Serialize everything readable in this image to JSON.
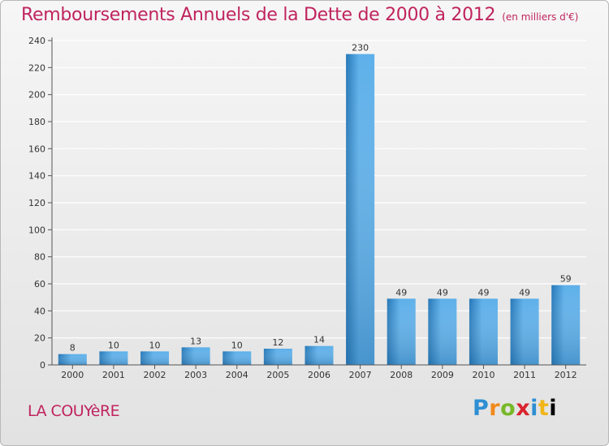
{
  "header": {
    "title": "Remboursements Annuels de la Dette de 2000 à 2012",
    "unit": "(en milliers d'€)"
  },
  "footer": {
    "commune": "LA COUYèRE",
    "logo_letters": [
      "P",
      "r",
      "o",
      "x",
      "i",
      "t",
      "i"
    ]
  },
  "colors": {
    "title": "#c0245e",
    "bar_light": "#5eb0ea",
    "bar_dark": "#2578b8",
    "grid": "#ffffff",
    "background_top": "#f6f6f6",
    "background_bottom": "#e2e2e2"
  },
  "chart_data": {
    "type": "bar",
    "categories": [
      "2000",
      "2001",
      "2002",
      "2003",
      "2004",
      "2005",
      "2006",
      "2007",
      "2008",
      "2009",
      "2010",
      "2011",
      "2012"
    ],
    "values": [
      8,
      10,
      10,
      13,
      10,
      12,
      14,
      230,
      49,
      49,
      49,
      49,
      59
    ],
    "data_labels": [
      "8",
      "10",
      "10",
      "13",
      "10",
      "12",
      "14",
      "230",
      "49",
      "49",
      "49",
      "49",
      "59"
    ],
    "yticks": [
      "0",
      "20",
      "40",
      "60",
      "80",
      "100",
      "120",
      "140",
      "160",
      "180",
      "200",
      "220",
      "240"
    ],
    "ylim": [
      0,
      240
    ],
    "grid": true,
    "legend": false
  }
}
